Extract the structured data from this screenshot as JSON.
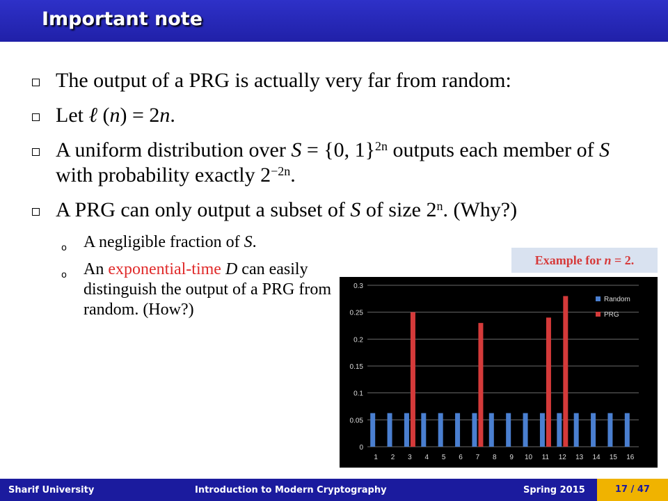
{
  "slide": {
    "title": "Important note",
    "b1": "The output of a PRG is actually very far from random:",
    "b2_pre": "Let ",
    "b2_ell": "ℓ",
    "b2_mid1": " (",
    "b2_n1": "n",
    "b2_mid2": ") = 2",
    "b2_n2": "n",
    "b2_end": ".",
    "b3_pre": "A uniform distribution over ",
    "b3_S": "S",
    "b3_mid": " = {0, 1}",
    "b3_exp": "2n",
    "b3_mid2": " outputs each member of ",
    "b3_S2": "S",
    "b3_mid3": " with probability exactly 2",
    "b3_exp2": "−2n",
    "b3_end": ".",
    "b4_pre": "A PRG can only output a subset of ",
    "b4_S": "S",
    "b4_mid": " of size 2",
    "b4_exp": "n",
    "b4_end": ". (Why?)",
    "s1_pre": "A negligible fraction of ",
    "s1_S": "S",
    "s1_end": ".",
    "s2_pre": "An ",
    "s2_red": "exponential-time",
    "s2_D": "D",
    "s2_end": " can easily distinguish the output of a PRG from random. (How?)",
    "example_pre": "Example for ",
    "example_n": "n",
    "example_end": " = 2."
  },
  "footer": {
    "university": "Sharif University",
    "course": "Introduction to Modern Cryptography",
    "term": "Spring 2015",
    "page": "17 / 47"
  },
  "chart_data": {
    "type": "bar",
    "categories": [
      "1",
      "2",
      "3",
      "4",
      "5",
      "6",
      "7",
      "8",
      "9",
      "10",
      "11",
      "12",
      "13",
      "14",
      "15",
      "16"
    ],
    "series": [
      {
        "name": "Random",
        "values": [
          0.0625,
          0.0625,
          0.0625,
          0.0625,
          0.0625,
          0.0625,
          0.0625,
          0.0625,
          0.0625,
          0.0625,
          0.0625,
          0.0625,
          0.0625,
          0.0625,
          0.0625,
          0.0625
        ],
        "color": "#4a7fd0"
      },
      {
        "name": "PRG",
        "values": [
          0,
          0,
          0.25,
          0,
          0,
          0,
          0.23,
          0,
          0,
          0,
          0.24,
          0.28,
          0,
          0,
          0,
          0
        ],
        "color": "#d43a3a"
      }
    ],
    "yticks": [
      "0",
      "0.05",
      "0.1",
      "0.15",
      "0.2",
      "0.25",
      "0.3"
    ],
    "ylim": [
      0,
      0.3
    ],
    "legend": "right"
  }
}
